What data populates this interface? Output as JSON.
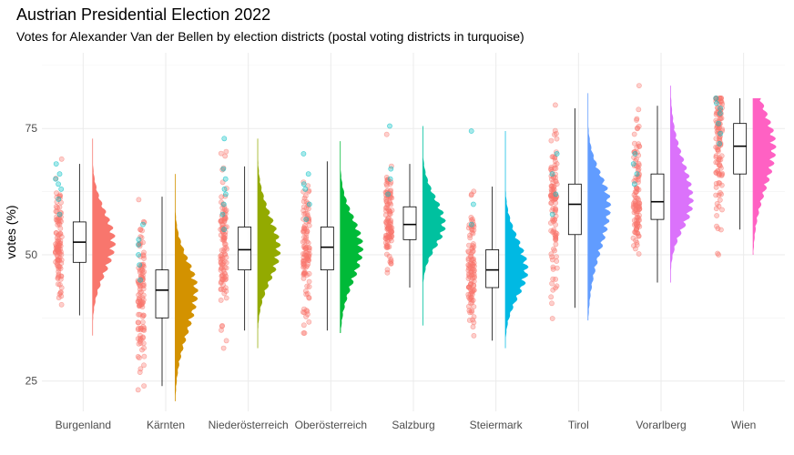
{
  "chart_data": {
    "type": "raincloud",
    "title": "Austrian Presidential Election 2022",
    "subtitle": "Votes for Alexander Van der Bellen by election districts (postal voting districts in turquoise)",
    "xlabel": "",
    "ylabel": "votes (%)",
    "ylim": [
      19,
      90
    ],
    "yticks": [
      25,
      50,
      75
    ],
    "grid": true,
    "legend": "none",
    "point_color": "#F8766D",
    "postal_point_color": "#00BFC4",
    "categories": [
      "Burgenland",
      "Kärnten",
      "Niederösterreich",
      "Oberösterreich",
      "Salzburg",
      "Steiermark",
      "Tirol",
      "Vorarlberg",
      "Wien"
    ],
    "series": [
      {
        "name": "Burgenland",
        "color": "#F8766D",
        "min": 34,
        "max": 73,
        "whisker_low": 38,
        "q1": 48.5,
        "median": 52.5,
        "q3": 56.5,
        "whisker_high": 68,
        "postal": [
          58,
          61,
          63,
          64,
          65,
          66,
          68
        ]
      },
      {
        "name": "Kärnten",
        "color": "#D39200",
        "min": 21,
        "max": 66,
        "whisker_low": 24,
        "q1": 37.5,
        "median": 43,
        "q3": 47,
        "whisker_high": 61.5,
        "postal": [
          45,
          48,
          50,
          52,
          53,
          56
        ]
      },
      {
        "name": "Niederösterreich",
        "color": "#93AA00",
        "min": 31.5,
        "max": 73,
        "whisker_low": 35,
        "q1": 47,
        "median": 51,
        "q3": 55.5,
        "whisker_high": 67.5,
        "postal": [
          55,
          58,
          60,
          62,
          63,
          65,
          67,
          73
        ]
      },
      {
        "name": "Oberösterreich",
        "color": "#00BA38",
        "min": 34.5,
        "max": 72.5,
        "whisker_low": 35,
        "q1": 47,
        "median": 51.5,
        "q3": 55.5,
        "whisker_high": 68.5,
        "postal": [
          57,
          60,
          63,
          64,
          66,
          70
        ]
      },
      {
        "name": "Salzburg",
        "color": "#00C19F",
        "min": 36,
        "max": 75.5,
        "whisker_low": 43.5,
        "q1": 53,
        "median": 56,
        "q3": 59.5,
        "whisker_high": 68,
        "postal": [
          62,
          65,
          67,
          75.5
        ]
      },
      {
        "name": "Steiermark",
        "color": "#00B9E3",
        "min": 31.5,
        "max": 74.5,
        "whisker_low": 33,
        "q1": 43.5,
        "median": 47,
        "q3": 51,
        "whisker_high": 63.5,
        "postal": [
          56,
          60,
          74.5
        ]
      },
      {
        "name": "Tirol",
        "color": "#619CFF",
        "min": 37,
        "max": 82,
        "whisker_low": 39.5,
        "q1": 54,
        "median": 60,
        "q3": 64,
        "whisker_high": 79,
        "postal": [
          58,
          62,
          66,
          70
        ]
      },
      {
        "name": "Vorarlberg",
        "color": "#DB72FB",
        "min": 44.5,
        "max": 83.5,
        "whisker_low": 44.5,
        "q1": 57,
        "median": 60.5,
        "q3": 66,
        "whisker_high": 79.5,
        "postal": [
          64,
          66,
          68,
          70
        ]
      },
      {
        "name": "Wien",
        "color": "#FF61C3",
        "min": 50,
        "max": 81,
        "whisker_low": 55,
        "q1": 66,
        "median": 71.5,
        "q3": 76,
        "whisker_high": 81,
        "postal": [
          72,
          74,
          76,
          78,
          79,
          80,
          81
        ]
      }
    ]
  }
}
